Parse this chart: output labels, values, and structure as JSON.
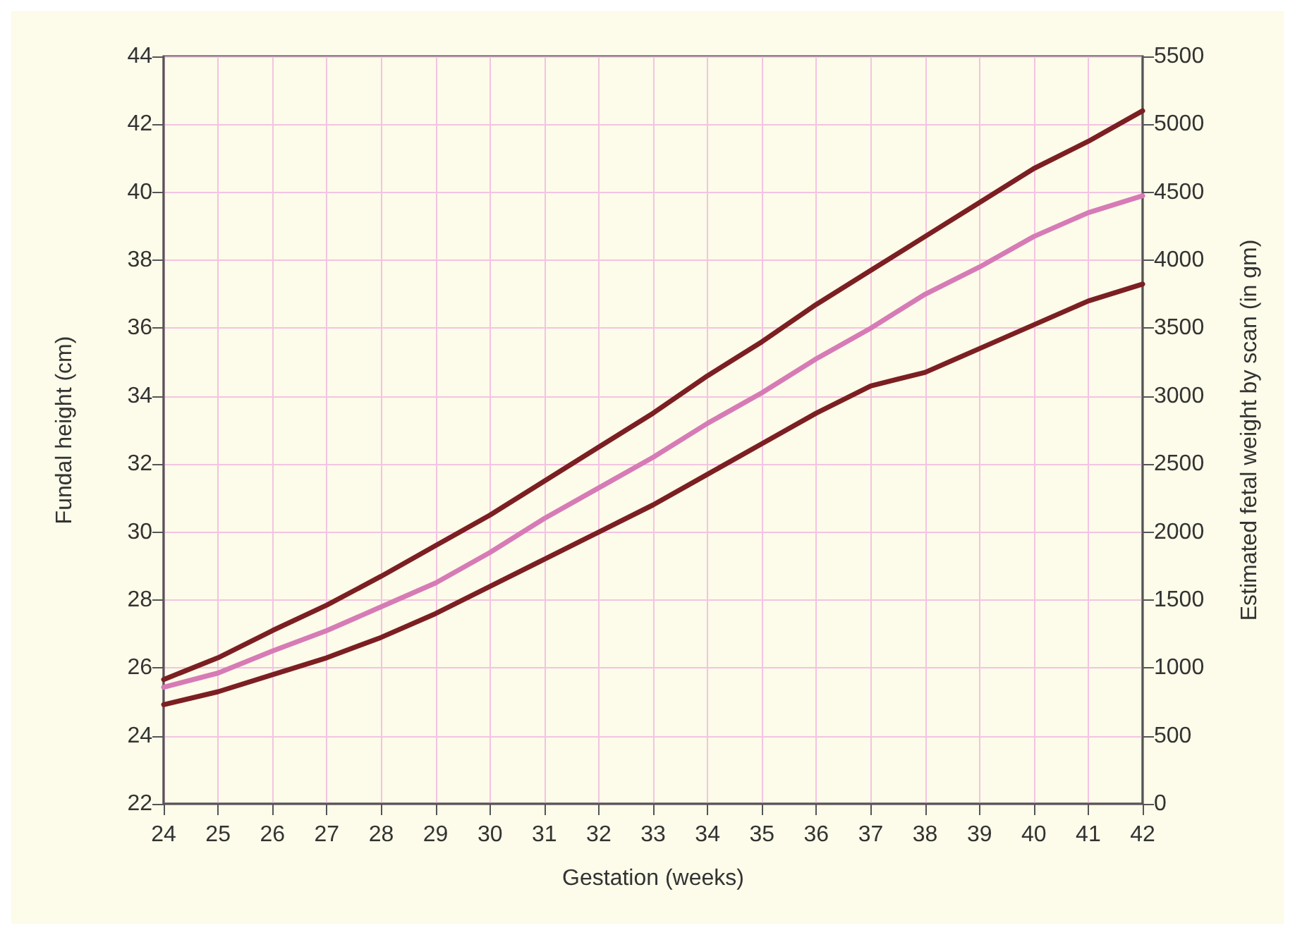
{
  "chart_data": {
    "type": "line",
    "xlabel": "Gestation (weeks)",
    "ylabel": "Fundal height (cm)",
    "y2label": "Estimated fetal weight by scan (in gm)",
    "x": [
      24,
      25,
      26,
      27,
      28,
      29,
      30,
      31,
      32,
      33,
      34,
      35,
      36,
      37,
      38,
      39,
      40,
      41,
      42
    ],
    "series": [
      {
        "color": "#7b1f22",
        "values": [
          25.66,
          26.3,
          27.1,
          27.85,
          28.7,
          29.6,
          30.5,
          31.5,
          32.5,
          33.5,
          34.6,
          35.6,
          36.7,
          37.7,
          38.7,
          39.7,
          40.7,
          41.5,
          42.4
        ]
      },
      {
        "color": "#d67bb6",
        "values": [
          25.43,
          25.85,
          26.5,
          27.1,
          27.8,
          28.5,
          29.4,
          30.4,
          31.3,
          32.2,
          33.2,
          34.1,
          35.1,
          36.0,
          37.0,
          37.8,
          38.7,
          39.4,
          39.9
        ]
      },
      {
        "color": "#7b1f22",
        "values": [
          24.92,
          25.3,
          25.8,
          26.3,
          26.9,
          27.6,
          28.4,
          29.2,
          30.0,
          30.8,
          31.7,
          32.6,
          33.5,
          34.3,
          34.7,
          35.4,
          36.1,
          36.8,
          37.3
        ]
      }
    ],
    "xlim": [
      24,
      42
    ],
    "xticks": [
      24,
      25,
      26,
      27,
      28,
      29,
      30,
      31,
      32,
      33,
      34,
      35,
      36,
      37,
      38,
      39,
      40,
      41,
      42
    ],
    "ylim": [
      22,
      44
    ],
    "yticks": [
      22,
      24,
      26,
      28,
      30,
      32,
      34,
      36,
      38,
      40,
      42,
      44
    ],
    "y2lim": [
      0,
      5500
    ],
    "y2ticks": [
      0,
      500,
      1000,
      1500,
      2000,
      2500,
      3000,
      3500,
      4000,
      4500,
      5000,
      5500
    ],
    "grid": true,
    "line_style": "solid",
    "marker": "none"
  }
}
